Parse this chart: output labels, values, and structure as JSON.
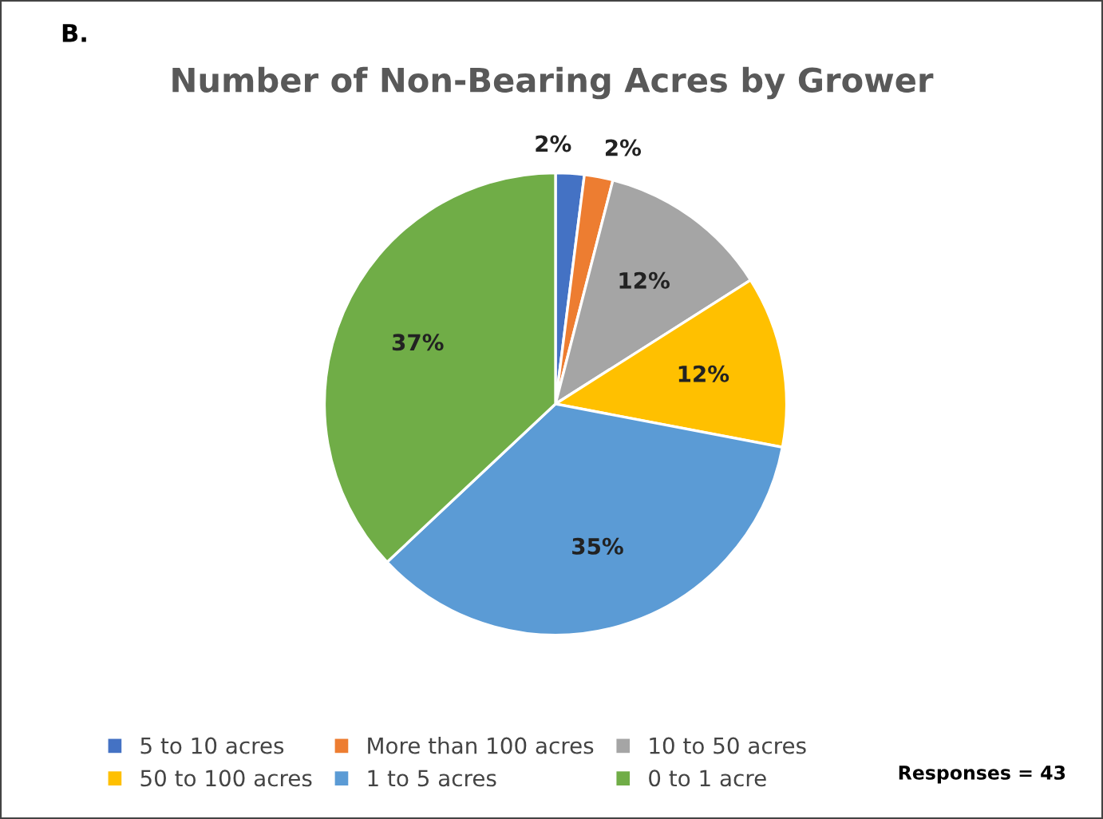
{
  "chart_data": {
    "type": "pie",
    "title": "Number of Non-Bearing Acres by Grower",
    "categories": [
      "5 to 10 acres",
      "More than 100 acres",
      "10 to 50 acres",
      "50 to 100 acres",
      "1 to 5 acres",
      "0 to 1 acre"
    ],
    "values": [
      2,
      2,
      12,
      12,
      35,
      37
    ],
    "colors": [
      "#4472c4",
      "#ed7d31",
      "#a5a5a5",
      "#ffc000",
      "#5b9bd5",
      "#70ad47"
    ],
    "value_labels": [
      "2%",
      "2%",
      "12%",
      "12%",
      "35%",
      "37%"
    ],
    "legend": "bottom",
    "annotations": [
      "B.",
      "Responses = 43"
    ]
  }
}
